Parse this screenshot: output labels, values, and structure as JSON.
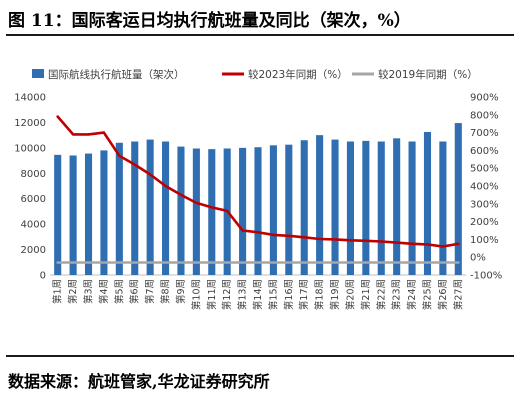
{
  "figure": {
    "title": "图 11：国际客运日均执行航班量及同比（架次，%）",
    "source": "数据来源：航班管家,华龙证券研究所"
  },
  "colors": {
    "bar": "#2f6fb1",
    "line2023": "#c00000",
    "line2019": "#a6a6a6"
  },
  "chart_data": {
    "type": "bar",
    "categories": [
      "第1周",
      "第2周",
      "第3周",
      "第4周",
      "第5周",
      "第6周",
      "第7周",
      "第8周",
      "第9周",
      "第10周",
      "第11周",
      "第12周",
      "第13周",
      "第14周",
      "第15周",
      "第16周",
      "第17周",
      "第18周",
      "第19周",
      "第20周",
      "第21周",
      "第22周",
      "第23周",
      "第24周",
      "第25周",
      "第26周",
      "第27周"
    ],
    "series": [
      {
        "name": "国际航线执行航班量（架次）",
        "type": "bar",
        "axis": "left",
        "values": [
          9450,
          9400,
          9550,
          9800,
          10400,
          10500,
          10650,
          10500,
          10100,
          9950,
          9900,
          9950,
          10000,
          10050,
          10200,
          10250,
          10600,
          11000,
          10650,
          10500,
          10550,
          10500,
          10750,
          10500,
          11250,
          10500,
          11950
        ]
      },
      {
        "name": "较2023年同期（%）",
        "type": "line",
        "axis": "right",
        "values": [
          790,
          690,
          690,
          700,
          570,
          520,
          465,
          400,
          350,
          305,
          280,
          260,
          150,
          140,
          125,
          120,
          112,
          102,
          100,
          95,
          92,
          88,
          82,
          75,
          72,
          60,
          75
        ]
      },
      {
        "name": "较2019年同期（%）",
        "type": "line",
        "axis": "right",
        "values": [
          -30,
          -30,
          -30,
          -30,
          -30,
          -30,
          -30,
          -30,
          -30,
          -30,
          -30,
          -30,
          -30,
          -30,
          -30,
          -30,
          -30,
          -30,
          -30,
          -30,
          -30,
          -30,
          -30,
          -30,
          -30,
          -30,
          -30
        ]
      }
    ],
    "y_left": {
      "min": 0,
      "max": 14000,
      "ticks": [
        "0",
        "2000",
        "4000",
        "6000",
        "8000",
        "10000",
        "12000",
        "14000"
      ]
    },
    "y_right": {
      "min": -100,
      "max": 900,
      "ticks": [
        "-100%",
        "0%",
        "100%",
        "200%",
        "300%",
        "400%",
        "500%",
        "600%",
        "700%",
        "800%",
        "900%"
      ]
    },
    "legend_position": "top",
    "grid": false
  }
}
